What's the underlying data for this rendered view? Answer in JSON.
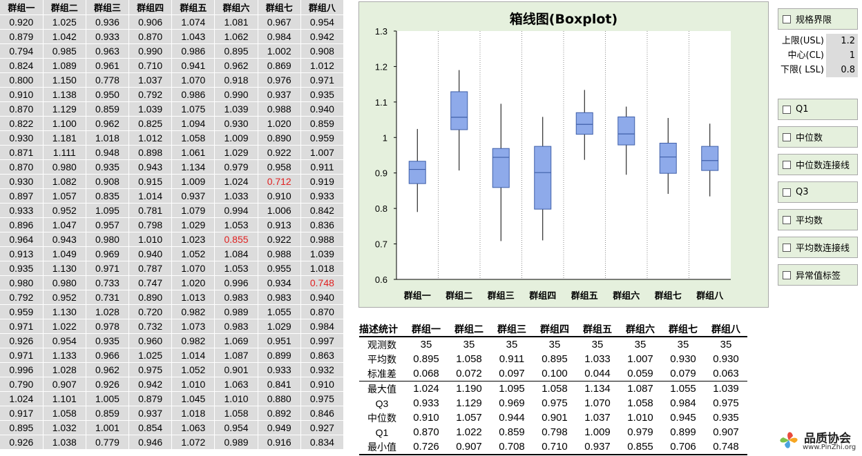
{
  "sheet": {
    "headers": [
      "群组一",
      "群组二",
      "群组三",
      "群组四",
      "群组五",
      "群组六",
      "群组七",
      "群组八"
    ],
    "rows": [
      [
        "0.920",
        "1.025",
        "0.936",
        "0.906",
        "1.074",
        "1.081",
        "0.967",
        "0.954"
      ],
      [
        "0.879",
        "1.042",
        "0.933",
        "0.870",
        "1.043",
        "1.062",
        "0.984",
        "0.942"
      ],
      [
        "0.794",
        "0.985",
        "0.963",
        "0.990",
        "0.986",
        "0.895",
        "1.002",
        "0.908"
      ],
      [
        "0.824",
        "1.089",
        "0.961",
        "0.710",
        "0.941",
        "0.962",
        "0.869",
        "1.012"
      ],
      [
        "0.800",
        "1.150",
        "0.778",
        "1.037",
        "1.070",
        "0.918",
        "0.976",
        "0.971"
      ],
      [
        "0.910",
        "1.138",
        "0.950",
        "0.792",
        "0.986",
        "0.990",
        "0.937",
        "0.935"
      ],
      [
        "0.870",
        "1.129",
        "0.859",
        "1.039",
        "1.075",
        "1.039",
        "0.988",
        "0.940"
      ],
      [
        "0.822",
        "1.100",
        "0.962",
        "0.825",
        "1.094",
        "0.930",
        "1.020",
        "0.859"
      ],
      [
        "0.930",
        "1.181",
        "1.018",
        "1.012",
        "1.058",
        "1.009",
        "0.890",
        "0.959"
      ],
      [
        "0.871",
        "1.111",
        "0.948",
        "0.898",
        "1.061",
        "1.029",
        "0.922",
        "1.007"
      ],
      [
        "0.870",
        "0.980",
        "0.935",
        "0.943",
        "1.134",
        "0.979",
        "0.958",
        "0.911"
      ],
      [
        "0.930",
        "1.082",
        "0.908",
        "0.915",
        "1.009",
        "1.024",
        "0.712",
        "0.919"
      ],
      [
        "0.897",
        "1.057",
        "0.835",
        "1.014",
        "0.937",
        "1.033",
        "0.910",
        "0.933"
      ],
      [
        "0.933",
        "0.952",
        "1.095",
        "0.781",
        "1.079",
        "0.994",
        "1.006",
        "0.842"
      ],
      [
        "0.896",
        "1.047",
        "0.957",
        "0.798",
        "1.029",
        "1.053",
        "0.913",
        "0.836"
      ],
      [
        "0.964",
        "0.943",
        "0.980",
        "1.010",
        "1.023",
        "0.855",
        "0.922",
        "0.988"
      ],
      [
        "0.913",
        "1.049",
        "0.969",
        "0.940",
        "1.052",
        "1.084",
        "0.988",
        "1.039"
      ],
      [
        "0.935",
        "1.130",
        "0.971",
        "0.787",
        "1.070",
        "1.053",
        "0.955",
        "1.018"
      ],
      [
        "0.980",
        "0.980",
        "0.733",
        "0.747",
        "1.020",
        "0.996",
        "0.934",
        "0.748"
      ],
      [
        "0.792",
        "0.952",
        "0.731",
        "0.890",
        "1.013",
        "0.983",
        "0.983",
        "0.940"
      ],
      [
        "0.959",
        "1.130",
        "1.028",
        "0.720",
        "0.982",
        "0.989",
        "1.055",
        "0.870"
      ],
      [
        "0.971",
        "1.022",
        "0.978",
        "0.732",
        "1.073",
        "0.983",
        "1.029",
        "0.984"
      ],
      [
        "0.926",
        "0.954",
        "0.935",
        "0.960",
        "0.982",
        "1.069",
        "0.951",
        "0.997"
      ],
      [
        "0.971",
        "1.133",
        "0.966",
        "1.025",
        "1.014",
        "1.087",
        "0.899",
        "0.863"
      ],
      [
        "0.996",
        "1.028",
        "0.962",
        "0.975",
        "1.052",
        "0.901",
        "0.933",
        "0.932"
      ],
      [
        "0.790",
        "0.907",
        "0.926",
        "0.942",
        "1.010",
        "1.063",
        "0.841",
        "0.910"
      ],
      [
        "1.024",
        "1.101",
        "1.005",
        "0.879",
        "1.045",
        "1.010",
        "0.880",
        "0.975"
      ],
      [
        "0.917",
        "1.058",
        "0.859",
        "0.937",
        "1.018",
        "1.058",
        "0.892",
        "0.846"
      ],
      [
        "0.895",
        "1.032",
        "1.001",
        "0.854",
        "1.063",
        "0.954",
        "0.949",
        "0.927"
      ],
      [
        "0.926",
        "1.038",
        "0.779",
        "0.946",
        "1.072",
        "0.989",
        "0.916",
        "0.834"
      ]
    ],
    "highlighted_cells": [
      [
        11,
        6
      ],
      [
        15,
        5
      ],
      [
        18,
        7
      ]
    ],
    "outlier_color": "#e02020"
  },
  "chart_data": {
    "type": "boxplot",
    "title": "箱线图(Boxplot)",
    "categories": [
      "群组一",
      "群组二",
      "群组三",
      "群组四",
      "群组五",
      "群组六",
      "群组七",
      "群组八"
    ],
    "ylim": [
      0.6,
      1.3
    ],
    "yticks": [
      {
        "value": 0.6,
        "label": "0.6"
      },
      {
        "value": 0.7,
        "label": "0.7"
      },
      {
        "value": 0.8,
        "label": "0.8"
      },
      {
        "value": 0.9,
        "label": "0.9"
      },
      {
        "value": 1.0,
        "label": "1"
      },
      {
        "value": 1.1,
        "label": "1.1"
      },
      {
        "value": 1.2,
        "label": "1.2"
      },
      {
        "value": 1.3,
        "label": "1.3"
      }
    ],
    "boxes": [
      {
        "min": 0.79,
        "q1": 0.87,
        "median": 0.91,
        "q3": 0.933,
        "max": 1.024
      },
      {
        "min": 0.907,
        "q1": 1.022,
        "median": 1.057,
        "q3": 1.129,
        "max": 1.19
      },
      {
        "min": 0.708,
        "q1": 0.859,
        "median": 0.944,
        "q3": 0.969,
        "max": 1.095
      },
      {
        "min": 0.71,
        "q1": 0.798,
        "median": 0.901,
        "q3": 0.975,
        "max": 1.058
      },
      {
        "min": 0.937,
        "q1": 1.009,
        "median": 1.037,
        "q3": 1.07,
        "max": 1.134
      },
      {
        "min": 0.895,
        "q1": 0.979,
        "median": 1.01,
        "q3": 1.058,
        "max": 1.087
      },
      {
        "min": 0.841,
        "q1": 0.899,
        "median": 0.945,
        "q3": 0.984,
        "max": 1.055
      },
      {
        "min": 0.834,
        "q1": 0.907,
        "median": 0.935,
        "q3": 0.975,
        "max": 1.039
      }
    ],
    "box_color": "#8eaaea",
    "box_edge_color": "#3f5fa8",
    "background": "#e5f0dd",
    "vertical_separators": "dotted",
    "grid": false
  },
  "controls": {
    "spec_limits_label": "规格界限",
    "limits": [
      {
        "label": "上限(USL)",
        "value": "1.2"
      },
      {
        "label": "中心(CL)",
        "value": "1"
      },
      {
        "label": "下限( LSL)",
        "value": "0.8"
      }
    ],
    "options": [
      "Q1",
      "中位数",
      "中位数连接线",
      "Q3",
      "平均数",
      "平均数连接线",
      "异常值标签"
    ]
  },
  "stats": {
    "corner_label": "描述统计",
    "headers": [
      "群组一",
      "群组二",
      "群组三",
      "群组四",
      "群组五",
      "群组六",
      "群组七",
      "群组八"
    ],
    "rows": [
      {
        "label": "观测数",
        "values": [
          "35",
          "35",
          "35",
          "35",
          "35",
          "35",
          "35",
          "35"
        ]
      },
      {
        "label": "平均数",
        "values": [
          "0.895",
          "1.058",
          "0.911",
          "0.895",
          "1.033",
          "1.007",
          "0.930",
          "0.930"
        ]
      },
      {
        "label": "标准差",
        "values": [
          "0.068",
          "0.072",
          "0.097",
          "0.100",
          "0.044",
          "0.059",
          "0.079",
          "0.063"
        ]
      },
      {
        "label": "最大值",
        "values": [
          "1.024",
          "1.190",
          "1.095",
          "1.058",
          "1.134",
          "1.087",
          "1.055",
          "1.039"
        ]
      },
      {
        "label": "Q3",
        "values": [
          "0.933",
          "1.129",
          "0.969",
          "0.975",
          "1.070",
          "1.058",
          "0.984",
          "0.975"
        ]
      },
      {
        "label": "中位数",
        "values": [
          "0.910",
          "1.057",
          "0.944",
          "0.901",
          "1.037",
          "1.010",
          "0.945",
          "0.935"
        ]
      },
      {
        "label": "Q1",
        "values": [
          "0.870",
          "1.022",
          "0.859",
          "0.798",
          "1.009",
          "0.979",
          "0.899",
          "0.907"
        ]
      },
      {
        "label": "最小值",
        "values": [
          "0.726",
          "0.907",
          "0.708",
          "0.710",
          "0.937",
          "0.855",
          "0.706",
          "0.748"
        ]
      }
    ]
  },
  "logo": {
    "name": "品质协会",
    "url": "www.PinZhi.org"
  }
}
